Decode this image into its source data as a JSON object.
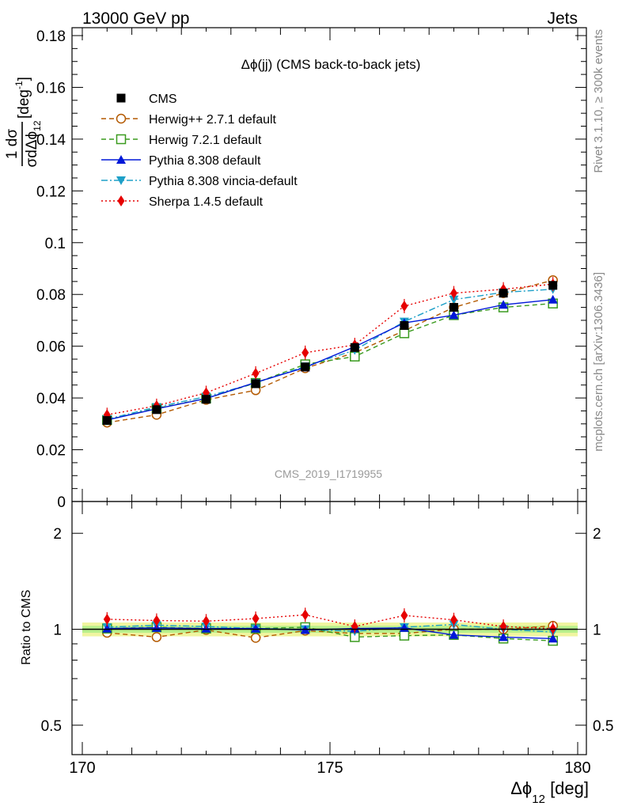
{
  "header": {
    "left": "13000 GeV pp",
    "right": "Jets"
  },
  "side_labels": {
    "rivet": "Rivet 3.1.10, ≥ 300k events",
    "mcplots": "mcplots.cern.ch [arXiv:1306.3436]"
  },
  "watermark": "CMS_2019_I1719955",
  "colors": {
    "cms": "#000000",
    "herwigpp": "#b35900",
    "herwig7": "#3a9b1f",
    "pythia": "#0018d8",
    "vincia": "#1ea0c8",
    "sherpa": "#e60000",
    "band_outer": "#f0f5a0",
    "band_inner": "#b8f08c"
  },
  "chart_data": [
    {
      "type": "line",
      "title": "Δϕ(jj) (CMS back-to-back jets)",
      "ylabel_parts": {
        "num": "1 dσ",
        "den": "σdΔϕ",
        "den_sub": "12",
        "unit": "[deg",
        "unit_sup": "-1",
        "unit_end": "]"
      },
      "xlim": [
        170,
        180
      ],
      "ylim": [
        0,
        0.18
      ],
      "yticks": [
        "0",
        "0.02",
        "0.04",
        "0.06",
        "0.08",
        "0.1",
        "0.12",
        "0.14",
        "0.16",
        "0.18"
      ],
      "legend_position": "top-left",
      "x": [
        170.5,
        171.5,
        172.5,
        173.5,
        174.5,
        175.5,
        176.5,
        177.5,
        178.5,
        179.5
      ],
      "series": [
        {
          "name": "CMS",
          "key": "cms",
          "marker": "square-filled",
          "dash": "none",
          "values": [
            0.0313,
            0.0355,
            0.0395,
            0.0455,
            0.052,
            0.0595,
            0.068,
            0.075,
            0.0805,
            0.0835
          ]
        },
        {
          "name": "Herwig++ 2.7.1 default",
          "key": "herwigpp",
          "marker": "circle-open",
          "dash": "dashed",
          "values": [
            0.0305,
            0.0335,
            0.0393,
            0.043,
            0.0515,
            0.0575,
            0.066,
            0.075,
            0.0805,
            0.0855
          ]
        },
        {
          "name": "Herwig 7.2.1 default",
          "key": "herwig7",
          "marker": "square-open",
          "dash": "dashed",
          "values": [
            0.0315,
            0.036,
            0.0398,
            0.0458,
            0.053,
            0.056,
            0.065,
            0.072,
            0.075,
            0.0765
          ]
        },
        {
          "name": "Pythia 8.308 default",
          "key": "pythia",
          "marker": "triangle-up",
          "dash": "solid",
          "values": [
            0.0315,
            0.0358,
            0.0398,
            0.046,
            0.0518,
            0.0598,
            0.069,
            0.072,
            0.076,
            0.078
          ]
        },
        {
          "name": "Pythia 8.308 vincia-default",
          "key": "vincia",
          "marker": "triangle-down",
          "dash": "dashdot",
          "values": [
            0.0318,
            0.0365,
            0.0405,
            0.0458,
            0.0522,
            0.0585,
            0.0695,
            0.078,
            0.0808,
            0.082
          ]
        },
        {
          "name": "Sherpa 1.4.5 default",
          "key": "sherpa",
          "marker": "diamond",
          "dash": "dotted",
          "values": [
            0.0335,
            0.037,
            0.042,
            0.0495,
            0.0575,
            0.0605,
            0.0755,
            0.0805,
            0.082,
            0.084
          ]
        }
      ]
    },
    {
      "type": "line",
      "ylabel": "Ratio to CMS",
      "xlabel_parts": {
        "main": "Δϕ",
        "sub": "12",
        "unit": " [deg]"
      },
      "xlim": [
        170,
        180
      ],
      "xticks": [
        "170",
        "175",
        "180"
      ],
      "yscale": "log",
      "ylim": [
        0.4,
        2.5
      ],
      "yticks": [
        "0.5",
        "1",
        "2"
      ],
      "x": [
        170.5,
        171.5,
        172.5,
        173.5,
        174.5,
        175.5,
        176.5,
        177.5,
        178.5,
        179.5
      ],
      "band": {
        "outer": [
          0.95,
          1.05
        ],
        "inner": [
          0.975,
          1.025
        ]
      },
      "series": [
        {
          "name": "CMS",
          "key": "cms",
          "values": [
            1,
            1,
            1,
            1,
            1,
            1,
            1,
            1,
            1,
            1
          ]
        },
        {
          "name": "Herwig++ 2.7.1 default",
          "key": "herwigpp",
          "values": [
            0.975,
            0.945,
            0.995,
            0.94,
            0.99,
            0.97,
            0.97,
            1.0,
            1.0,
            1.025
          ]
        },
        {
          "name": "Herwig 7.2.1 default",
          "key": "herwig7",
          "values": [
            1.005,
            1.015,
            1.005,
            1.005,
            1.015,
            0.945,
            0.955,
            0.96,
            0.935,
            0.92
          ]
        },
        {
          "name": "Pythia 8.308 default",
          "key": "pythia",
          "values": [
            1.005,
            1.01,
            1.005,
            1.005,
            0.995,
            1.005,
            1.01,
            0.96,
            0.945,
            0.935
          ]
        },
        {
          "name": "Pythia 8.308 vincia-default",
          "key": "vincia",
          "values": [
            1.015,
            1.03,
            1.02,
            1.005,
            1.0,
            0.985,
            1.015,
            1.035,
            1.0,
            0.98
          ]
        },
        {
          "name": "Sherpa 1.4.5 default",
          "key": "sherpa",
          "values": [
            1.075,
            1.065,
            1.06,
            1.08,
            1.11,
            1.02,
            1.105,
            1.07,
            1.02,
            1.005
          ]
        }
      ]
    }
  ]
}
